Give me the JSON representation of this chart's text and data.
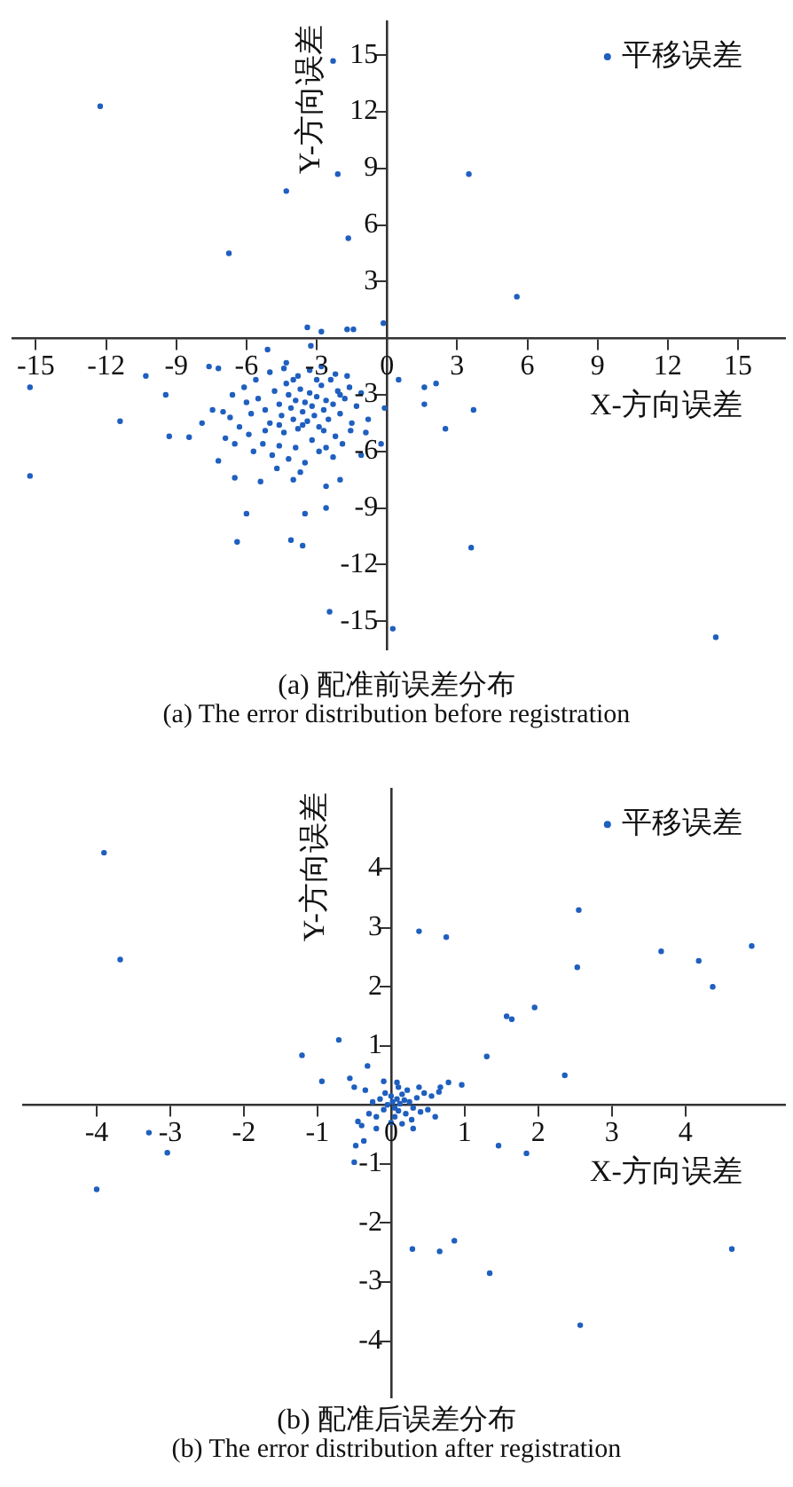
{
  "chart_data": [
    {
      "type": "scatter",
      "title": "(a) 配准前误差分布",
      "subtitle": "(a) The error distribution before registration",
      "xlabel": "X-方向误差",
      "ylabel": "Y-方向误差",
      "xlim": [
        -16,
        17
      ],
      "ylim": [
        -16.5,
        16.8
      ],
      "xticks": [
        -15,
        -12,
        -9,
        -6,
        -3,
        0,
        3,
        6,
        9,
        12,
        15
      ],
      "yticks": [
        -15,
        -12,
        -9,
        -6,
        -3,
        3,
        6,
        9,
        12,
        15
      ],
      "grid": false,
      "legend": "top right",
      "marker": "circle",
      "series": [
        {
          "name": "平移误差",
          "color": "#1f5fbf",
          "x": [
            -12.25,
            -2.3,
            -4.3,
            -2.1,
            -1.65,
            -6.75,
            3.5,
            5.55,
            -3.4,
            -2.8,
            -1.7,
            -1.43,
            -0.15,
            -5.1,
            -3.25,
            -15.25,
            -15.25,
            -11.4,
            -10.3,
            -9.45,
            -9.3,
            -8.45,
            -7.6,
            -7.2,
            -7.9,
            -7.45,
            -7.2,
            -6.5,
            -6.4,
            -6.0,
            -5.4,
            -4.3,
            -4.1,
            -3.6,
            -3.5,
            -4.0,
            -2.6,
            -2.6,
            -2.45,
            -2.0,
            -1.55,
            -1.1,
            -0.8,
            -0.1,
            -0.25,
            0.25,
            0.5,
            1.6,
            2.1,
            1.6,
            2.5,
            3.7,
            3.6,
            14.05,
            -5.5,
            -5.2,
            -5.0,
            -4.8,
            -4.6,
            -4.5,
            -4.4,
            -4.3,
            -4.2,
            -4.1,
            -4.0,
            -3.9,
            -3.8,
            -3.7,
            -3.6,
            -3.5,
            -3.4,
            -3.3,
            -3.2,
            -3.1,
            -3.0,
            -2.9,
            -2.8,
            -2.7,
            -2.6,
            -2.5,
            -2.4,
            -2.3,
            -2.2,
            -2.1,
            -2.0,
            -1.8,
            -1.6,
            -1.5,
            -1.3,
            -1.1,
            -0.9,
            -5.8,
            -5.9,
            -6.1,
            -6.3,
            -6.5,
            -6.7,
            -6.9,
            -5.7,
            -5.3,
            -4.9,
            -4.6,
            -4.2,
            -3.9,
            -3.5,
            -3.2,
            -2.9,
            -2.6,
            -2.3,
            -1.9,
            -5.6,
            -5.0,
            -4.4,
            -3.8,
            -3.3,
            -2.8,
            -2.2,
            -1.7,
            -6.0,
            -6.6,
            -7.0,
            -4.7,
            -3.7,
            -4.0,
            -3.0,
            -2.0,
            -5.2,
            -4.6,
            -3.6,
            -2.7
          ],
          "values": [
            12.3,
            14.7,
            7.8,
            8.7,
            5.3,
            4.5,
            8.7,
            2.2,
            0.57,
            0.35,
            0.47,
            0.47,
            0.8,
            -0.6,
            -0.4,
            -2.6,
            -7.3,
            -4.4,
            -2.0,
            -3.0,
            -5.2,
            -5.25,
            -1.5,
            -1.6,
            -4.5,
            -3.8,
            -6.5,
            -7.4,
            -10.8,
            -9.3,
            -7.6,
            -1.3,
            -10.7,
            -11.0,
            -9.3,
            -7.5,
            -7.85,
            -9.0,
            -14.5,
            -7.5,
            -4.9,
            -6.2,
            -4.3,
            -3.7,
            -5.6,
            -15.4,
            -2.2,
            -2.6,
            -2.4,
            -3.5,
            -4.8,
            -3.8,
            -11.1,
            -15.85,
            -3.2,
            -3.8,
            -4.5,
            -2.8,
            -3.5,
            -4.1,
            -5.0,
            -2.4,
            -3.0,
            -3.7,
            -4.3,
            -3.3,
            -4.8,
            -2.7,
            -3.9,
            -3.4,
            -4.4,
            -2.9,
            -3.6,
            -4.1,
            -3.1,
            -4.7,
            -2.5,
            -3.8,
            -3.3,
            -4.3,
            -2.2,
            -3.5,
            -5.2,
            -2.8,
            -4.0,
            -3.2,
            -2.6,
            -4.5,
            -3.6,
            -2.9,
            -5.0,
            -4.0,
            -5.1,
            -2.6,
            -4.7,
            -5.6,
            -4.2,
            -5.3,
            -6.0,
            -5.6,
            -6.2,
            -5.7,
            -6.4,
            -5.8,
            -6.6,
            -5.4,
            -6.0,
            -5.8,
            -6.3,
            -5.6,
            -2.2,
            -1.8,
            -1.6,
            -2.0,
            -1.7,
            -1.5,
            -1.9,
            -2.0,
            -3.4,
            -3.0,
            -3.9,
            -6.9,
            -7.1,
            -2.2,
            -2.2,
            -3.0,
            -4.9,
            -4.6,
            -4.6,
            -4.9
          ]
        }
      ]
    },
    {
      "type": "scatter",
      "title": "(b) 配准后误差分布",
      "subtitle": "(b) The error distribution after registration",
      "xlabel": "X-方向误差",
      "ylabel": "Y-方向误差",
      "xlim": [
        -5,
        5.35
      ],
      "ylim": [
        -4.95,
        5.35
      ],
      "xticks": [
        -4,
        -3,
        -2,
        -1,
        0,
        1,
        2,
        3,
        4
      ],
      "yticks": [
        -4,
        -3,
        -2,
        -1,
        1,
        2,
        3,
        4
      ],
      "grid": false,
      "legend": "top right",
      "marker": "circle",
      "series": [
        {
          "name": "平移误差",
          "color": "#1f5fbf",
          "x": [
            -3.9,
            -3.68,
            0.38,
            0.75,
            2.55,
            2.53,
            3.67,
            4.18,
            4.37,
            4.9,
            1.57,
            1.64,
            1.95,
            1.3,
            2.36,
            -0.71,
            -1.21,
            -0.94,
            -0.32,
            -0.56,
            0.78,
            0.96,
            0.67,
            -3.29,
            -3.04,
            -4.0,
            -0.5,
            -0.48,
            -0.37,
            1.46,
            1.84,
            0.29,
            0.66,
            0.86,
            1.34,
            2.57,
            4.63,
            0.02,
            0.05,
            0.08,
            0.1,
            -0.05,
            0.0,
            0.12,
            0.15,
            -0.1,
            0.2,
            0.18,
            0.25,
            0.3,
            0.05,
            -0.08,
            0.22,
            -0.15,
            0.35,
            0.4,
            0.28,
            -0.2,
            -0.25,
            0.45,
            0.5,
            0.1,
            0.0,
            -0.3,
            0.55,
            0.15,
            0.38,
            -0.35,
            -0.4,
            -0.45,
            -0.1,
            0.08,
            0.6,
            0.65,
            -0.5,
            0.3,
            -0.2
          ],
          "values": [
            4.27,
            2.46,
            2.94,
            2.84,
            3.3,
            2.33,
            2.6,
            2.44,
            2.0,
            2.69,
            1.5,
            1.45,
            1.65,
            0.82,
            0.5,
            1.1,
            0.84,
            0.4,
            0.66,
            0.45,
            0.38,
            0.34,
            0.3,
            -0.47,
            -0.81,
            -1.43,
            -0.97,
            -0.69,
            -0.61,
            -0.69,
            -0.82,
            -2.44,
            -2.48,
            -2.3,
            -2.85,
            -3.73,
            -2.44,
            0.05,
            -0.05,
            0.1,
            -0.1,
            0.0,
            0.15,
            0.02,
            0.18,
            -0.08,
            -0.15,
            0.08,
            0.05,
            -0.05,
            -0.2,
            0.2,
            0.25,
            0.1,
            0.12,
            -0.12,
            -0.25,
            -0.2,
            0.05,
            0.2,
            -0.08,
            0.3,
            -0.3,
            -0.15,
            0.15,
            -0.32,
            0.3,
            0.25,
            -0.35,
            -0.28,
            0.4,
            0.38,
            -0.2,
            0.22,
            0.3,
            -0.4,
            -0.4
          ]
        }
      ]
    }
  ]
}
